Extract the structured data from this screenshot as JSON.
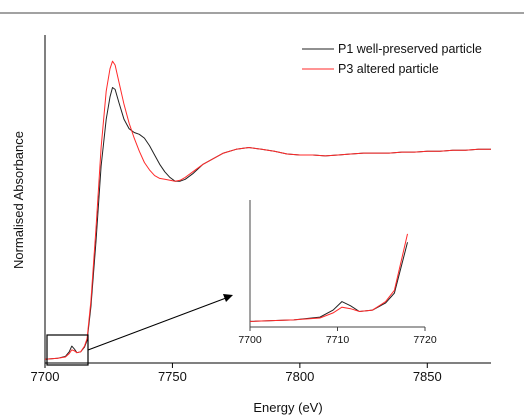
{
  "chart_data": {
    "type": "line",
    "xlabel": "Energy (eV)",
    "ylabel": "Normalised Absorbance",
    "xlim": [
      7700,
      7875
    ],
    "ylim": [
      0,
      1.75
    ],
    "x_ticks": [
      7700,
      7750,
      7800,
      7850
    ],
    "grid": false,
    "legend_position": "top-right",
    "series": [
      {
        "name": "P1 well-preserved particle",
        "color": "#222222",
        "points": [
          [
            7700,
            0.02
          ],
          [
            7705,
            0.025
          ],
          [
            7708,
            0.035
          ],
          [
            7709.5,
            0.06
          ],
          [
            7710.5,
            0.09
          ],
          [
            7711.5,
            0.075
          ],
          [
            7712.5,
            0.055
          ],
          [
            7714,
            0.06
          ],
          [
            7715.5,
            0.085
          ],
          [
            7716.5,
            0.12
          ],
          [
            7718,
            0.3
          ],
          [
            7720,
            0.65
          ],
          [
            7722,
            1.05
          ],
          [
            7724,
            1.3
          ],
          [
            7725.5,
            1.42
          ],
          [
            7726.5,
            1.47
          ],
          [
            7727.5,
            1.46
          ],
          [
            7729,
            1.39
          ],
          [
            7731,
            1.3
          ],
          [
            7733,
            1.25
          ],
          [
            7735,
            1.23
          ],
          [
            7737,
            1.22
          ],
          [
            7739,
            1.2
          ],
          [
            7741,
            1.16
          ],
          [
            7743,
            1.11
          ],
          [
            7745,
            1.06
          ],
          [
            7747,
            1.02
          ],
          [
            7749,
            0.99
          ],
          [
            7751,
            0.97
          ],
          [
            7753,
            0.97
          ],
          [
            7755,
            0.98
          ],
          [
            7758,
            1.01
          ],
          [
            7762,
            1.06
          ],
          [
            7766,
            1.09
          ],
          [
            7770,
            1.12
          ],
          [
            7775,
            1.14
          ],
          [
            7780,
            1.15
          ],
          [
            7785,
            1.14
          ],
          [
            7790,
            1.13
          ],
          [
            7795,
            1.115
          ],
          [
            7800,
            1.11
          ],
          [
            7805,
            1.11
          ],
          [
            7810,
            1.105
          ],
          [
            7815,
            1.11
          ],
          [
            7820,
            1.115
          ],
          [
            7825,
            1.12
          ],
          [
            7830,
            1.12
          ],
          [
            7835,
            1.12
          ],
          [
            7840,
            1.125
          ],
          [
            7845,
            1.125
          ],
          [
            7850,
            1.13
          ],
          [
            7855,
            1.13
          ],
          [
            7860,
            1.135
          ],
          [
            7865,
            1.135
          ],
          [
            7870,
            1.14
          ],
          [
            7875,
            1.14
          ]
        ]
      },
      {
        "name": "P3 altered particle",
        "color": "#ff2a2a",
        "points": [
          [
            7700,
            0.02
          ],
          [
            7705,
            0.025
          ],
          [
            7708,
            0.032
          ],
          [
            7709.5,
            0.05
          ],
          [
            7710.5,
            0.07
          ],
          [
            7711.5,
            0.065
          ],
          [
            7712.5,
            0.055
          ],
          [
            7714,
            0.06
          ],
          [
            7715.5,
            0.09
          ],
          [
            7716.5,
            0.13
          ],
          [
            7718,
            0.33
          ],
          [
            7720,
            0.72
          ],
          [
            7722,
            1.15
          ],
          [
            7724,
            1.45
          ],
          [
            7725.5,
            1.57
          ],
          [
            7726.5,
            1.61
          ],
          [
            7727.5,
            1.59
          ],
          [
            7729,
            1.5
          ],
          [
            7731,
            1.38
          ],
          [
            7733,
            1.28
          ],
          [
            7735,
            1.2
          ],
          [
            7737,
            1.13
          ],
          [
            7739,
            1.07
          ],
          [
            7741,
            1.03
          ],
          [
            7743,
            1.0
          ],
          [
            7745,
            0.985
          ],
          [
            7747,
            0.98
          ],
          [
            7749,
            0.975
          ],
          [
            7751,
            0.97
          ],
          [
            7753,
            0.975
          ],
          [
            7755,
            0.99
          ],
          [
            7758,
            1.02
          ],
          [
            7762,
            1.06
          ],
          [
            7766,
            1.09
          ],
          [
            7770,
            1.12
          ],
          [
            7775,
            1.14
          ],
          [
            7780,
            1.15
          ],
          [
            7785,
            1.14
          ],
          [
            7790,
            1.13
          ],
          [
            7795,
            1.115
          ],
          [
            7800,
            1.11
          ],
          [
            7805,
            1.11
          ],
          [
            7810,
            1.105
          ],
          [
            7815,
            1.11
          ],
          [
            7820,
            1.115
          ],
          [
            7825,
            1.12
          ],
          [
            7830,
            1.12
          ],
          [
            7835,
            1.12
          ],
          [
            7840,
            1.125
          ],
          [
            7845,
            1.125
          ],
          [
            7850,
            1.13
          ],
          [
            7855,
            1.13
          ],
          [
            7860,
            1.135
          ],
          [
            7865,
            1.135
          ],
          [
            7870,
            1.14
          ],
          [
            7875,
            1.14
          ]
        ]
      }
    ],
    "inset": {
      "xlim": [
        7700,
        7720
      ],
      "ylim": [
        0,
        0.45
      ],
      "x_ticks": [
        7700,
        7710,
        7720
      ],
      "zoom_region": {
        "x": [
          7700,
          7716
        ],
        "y": [
          0,
          0.16
        ]
      }
    }
  }
}
